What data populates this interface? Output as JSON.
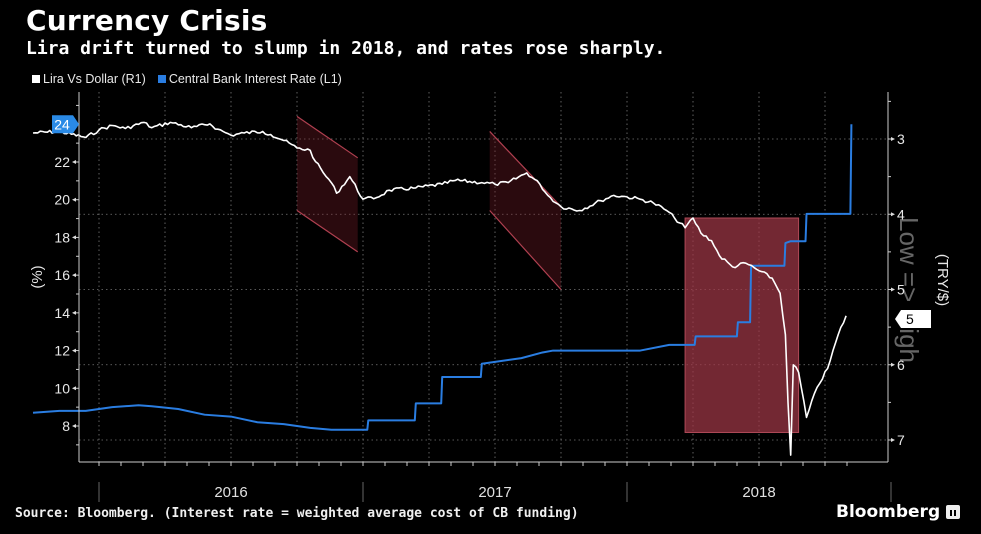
{
  "header": {
    "title": "Currency Crisis",
    "subtitle": "Lira drift turned to slump in 2018, and rates rose sharply."
  },
  "footer": {
    "source": "Source: Bloomberg. (Interest rate = weighted average cost of CB funding)",
    "brand": "Bloomberg"
  },
  "colors": {
    "background": "#000000",
    "lira": "#ffffff",
    "rate": "#2a7de1",
    "highlight": "#8a2f3a"
  },
  "chart_data": {
    "type": "line",
    "title": "Currency Crisis",
    "subtitle": "Lira drift turned to slump in 2018, and rates rose sharply.",
    "legend": [
      {
        "name": "Lira Vs Dollar (R1)",
        "color": "#ffffff"
      },
      {
        "name": "Central Bank Interest Rate (L1)",
        "color": "#2a7de1"
      }
    ],
    "legend_position": "top-left",
    "left_axis": {
      "label": "(%)",
      "ticks": [
        8,
        10,
        12,
        14,
        16,
        18,
        20,
        22
      ],
      "range": [
        6.7,
        25.8
      ],
      "last_value_badge": "24"
    },
    "right_axis": {
      "label": "(TRY/$)",
      "inverted": true,
      "ticks": [
        3,
        4,
        5,
        6,
        7
      ],
      "range": [
        2.45,
        7.35
      ],
      "last_value_badge": "5",
      "annotation": "Low => High"
    },
    "x_axis": {
      "year_labels": [
        "2016",
        "2017",
        "2018"
      ],
      "range": [
        "2015-10",
        "2018-10"
      ]
    },
    "grid": true,
    "series": [
      {
        "name": "Central Bank Interest Rate",
        "axis": "left",
        "x": [
          2015.75,
          2015.85,
          2015.95,
          2016.05,
          2016.15,
          2016.2,
          2016.3,
          2016.4,
          2016.5,
          2016.6,
          2016.7,
          2016.8,
          2016.88,
          2016.95,
          2016.98,
          2017.02,
          2017.1,
          2017.15,
          2017.2,
          2017.3,
          2017.45,
          2017.6,
          2017.68,
          2017.72,
          2017.8,
          2017.95,
          2018.05,
          2018.16,
          2018.26,
          2018.3,
          2018.38,
          2018.42,
          2018.47,
          2018.55,
          2018.6,
          2018.62,
          2018.68,
          2018.75,
          2018.85
        ],
        "y": [
          8.7,
          8.8,
          8.8,
          9.0,
          9.1,
          9.05,
          8.9,
          8.6,
          8.5,
          8.2,
          8.1,
          7.9,
          7.8,
          7.8,
          7.8,
          8.3,
          8.3,
          8.3,
          9.2,
          10.6,
          11.3,
          11.6,
          11.9,
          12.0,
          12.0,
          12.0,
          12.0,
          12.3,
          12.75,
          12.75,
          12.75,
          13.5,
          16.5,
          16.5,
          17.7,
          17.8,
          19.25,
          19.25,
          24.0
        ]
      },
      {
        "name": "Lira Vs Dollar",
        "axis": "right",
        "unit": "TRY/$",
        "x": [
          2015.75,
          2015.85,
          2015.95,
          2016.0,
          2016.05,
          2016.1,
          2016.17,
          2016.2,
          2016.27,
          2016.35,
          2016.42,
          2016.45,
          2016.5,
          2016.55,
          2016.62,
          2016.65,
          2016.7,
          2016.75,
          2016.8,
          2016.82,
          2016.85,
          2016.88,
          2016.9,
          2016.95,
          2017.0,
          2017.05,
          2017.1,
          2017.2,
          2017.3,
          2017.35,
          2017.45,
          2017.5,
          2017.55,
          2017.62,
          2017.67,
          2017.7,
          2017.75,
          2017.82,
          2017.9,
          2017.95,
          2018.0,
          2018.05,
          2018.1,
          2018.15,
          2018.18,
          2018.22,
          2018.25,
          2018.28,
          2018.32,
          2018.35,
          2018.4,
          2018.45,
          2018.5,
          2018.55,
          2018.58,
          2018.6,
          2018.61,
          2018.62,
          2018.63,
          2018.65,
          2018.68,
          2018.72,
          2018.76,
          2018.8,
          2018.83
        ],
        "y": [
          2.92,
          2.9,
          2.98,
          2.88,
          2.82,
          2.86,
          2.78,
          2.85,
          2.78,
          2.85,
          2.8,
          2.87,
          2.95,
          2.92,
          2.9,
          2.94,
          3.02,
          3.12,
          3.15,
          3.3,
          3.45,
          3.58,
          3.72,
          3.5,
          3.8,
          3.78,
          3.68,
          3.65,
          3.6,
          3.55,
          3.58,
          3.6,
          3.58,
          3.45,
          3.6,
          3.75,
          3.9,
          3.95,
          3.82,
          3.75,
          3.77,
          3.8,
          3.85,
          3.95,
          4.05,
          4.18,
          4.05,
          4.25,
          4.35,
          4.55,
          4.7,
          4.65,
          4.75,
          4.85,
          5.05,
          5.6,
          6.5,
          7.2,
          6.0,
          6.1,
          6.7,
          6.3,
          6.05,
          5.6,
          5.35
        ]
      }
    ],
    "highlights": [
      {
        "kind": "parallelogram",
        "x_from": 2016.75,
        "x_to": 2016.98,
        "y_right_top_start": 2.7,
        "y_right_top_end": 3.25,
        "y_right_bottom_start": 3.95,
        "y_right_bottom_end": 4.5
      },
      {
        "kind": "parallelogram",
        "x_from": 2017.48,
        "x_to": 2017.75,
        "y_right_top_start": 2.9,
        "y_right_top_end": 3.9,
        "y_right_bottom_start": 3.95,
        "y_right_bottom_end": 5.0
      },
      {
        "kind": "rectangle",
        "x_from": 2018.22,
        "x_to": 2018.65,
        "y_right_top": 4.05,
        "y_right_bottom": 6.9
      }
    ]
  }
}
